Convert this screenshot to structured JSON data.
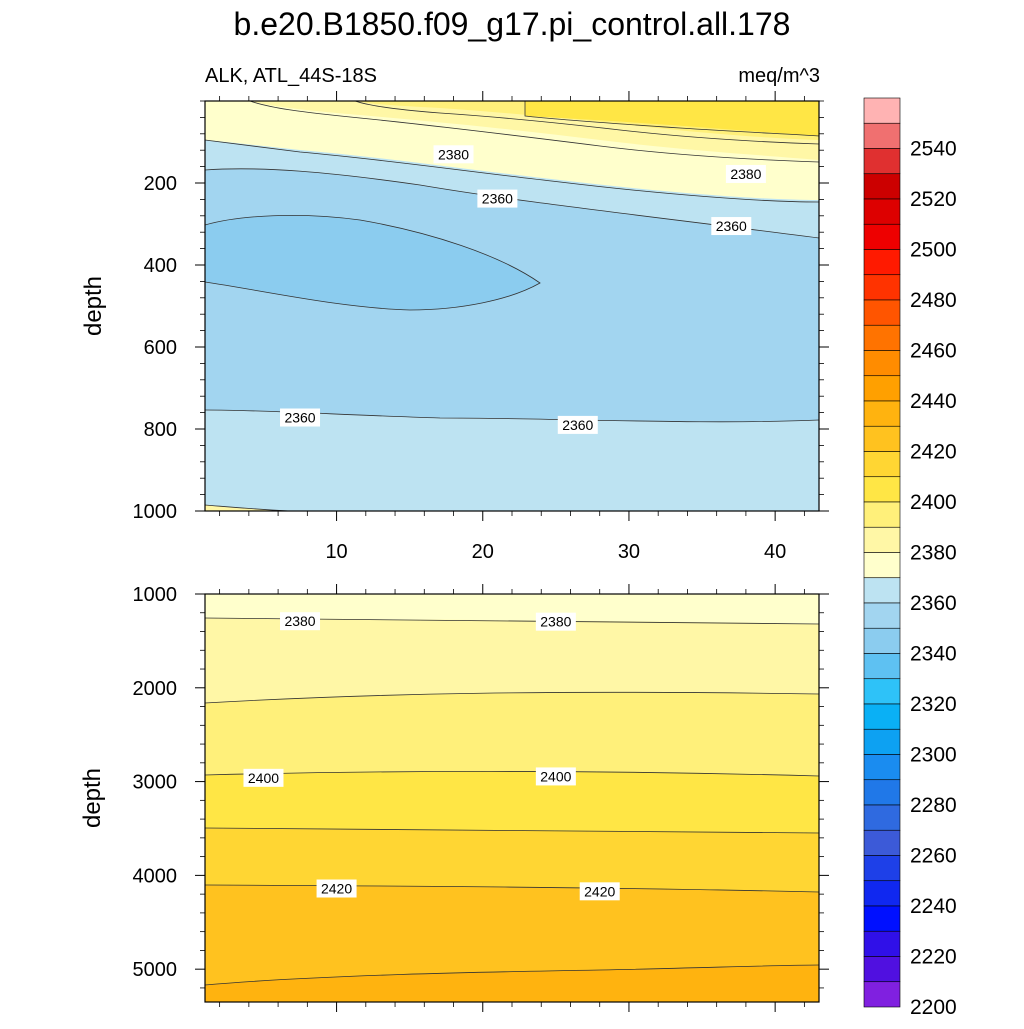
{
  "title": "b.e20.B1850.f09_g17.pi_control.all.178",
  "left_subtitle": "ALK, ATL_44S-18S",
  "right_subtitle": "meq/m^3",
  "colors": {
    "frame": "#000000",
    "contour_line": "#333333"
  },
  "chart_data": [
    {
      "type": "contour",
      "name": "upper-panel",
      "xlim": [
        1,
        43
      ],
      "ylim": [
        1000,
        0
      ],
      "xticks": [
        10,
        20,
        30,
        40
      ],
      "xtick_labels": [
        "10",
        "20",
        "30",
        "40"
      ],
      "yticks": [
        200,
        400,
        600,
        800,
        1000
      ],
      "ytick_labels": [
        "200",
        "400",
        "600",
        "800",
        "1000"
      ],
      "ylabel": "depth",
      "contour_labels": [
        {
          "text": "2380",
          "x": 18,
          "y": 130
        },
        {
          "text": "2380",
          "x": 38,
          "y": 178
        },
        {
          "text": "2360",
          "x": 21,
          "y": 238
        },
        {
          "text": "2360",
          "x": 37,
          "y": 305
        },
        {
          "text": "2360",
          "x": 7.5,
          "y": 772
        },
        {
          "text": "2360",
          "x": 26.5,
          "y": 790
        }
      ]
    },
    {
      "type": "contour",
      "name": "lower-panel",
      "xlim": [
        1,
        43
      ],
      "ylim": [
        5350,
        1000
      ],
      "xticks": [
        10,
        20,
        30,
        40
      ],
      "xtick_labels": [
        "",
        "",
        "",
        ""
      ],
      "yticks": [
        1000,
        2000,
        3000,
        4000,
        5000
      ],
      "ytick_labels": [
        "1000",
        "2000",
        "3000",
        "4000",
        "5000"
      ],
      "ylabel": "depth",
      "contour_labels": [
        {
          "text": "2380",
          "x": 7.5,
          "y": 1290
        },
        {
          "text": "2380",
          "x": 25,
          "y": 1295
        },
        {
          "text": "2400",
          "x": 5,
          "y": 2960
        },
        {
          "text": "2400",
          "x": 25,
          "y": 2945
        },
        {
          "text": "2420",
          "x": 10,
          "y": 4140
        },
        {
          "text": "2420",
          "x": 28,
          "y": 4170
        }
      ]
    }
  ],
  "colorbar": {
    "labels": [
      "2540",
      "2520",
      "2500",
      "2480",
      "2460",
      "2440",
      "2420",
      "2400",
      "2380",
      "2360",
      "2340",
      "2320",
      "2300",
      "2280",
      "2260",
      "2240",
      "2220",
      "2200"
    ],
    "colors": [
      "#ffb3b3",
      "#f07070",
      "#e03030",
      "#cc0000",
      "#dd0000",
      "#ee0000",
      "#ff1a00",
      "#ff3300",
      "#ff5500",
      "#ff7300",
      "#ff8c00",
      "#ffa000",
      "#ffb30f",
      "#ffc21f",
      "#ffd633",
      "#ffe645",
      "#fff07a",
      "#fff7a6",
      "#ffffcc",
      "#bde3f2",
      "#a2d5f0",
      "#8bccef",
      "#5ec1f2",
      "#2ec2f8",
      "#0ab0f5",
      "#0da1f2",
      "#1a8cf0",
      "#2078e8",
      "#2f6ae0",
      "#3c5ad8",
      "#1e40e8",
      "#1028f0",
      "#0010ff",
      "#3010e8",
      "#5010e0",
      "#8020e0"
    ]
  }
}
